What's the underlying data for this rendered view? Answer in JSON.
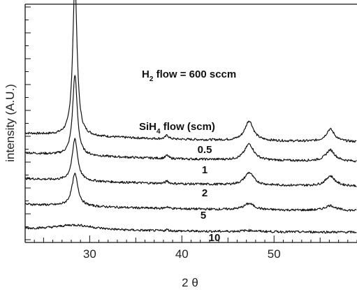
{
  "chart_data": {
    "type": "line",
    "xlabel": "2 θ",
    "ylabel": "intensity (A.U.)",
    "xlim": [
      23,
      59
    ],
    "x_ticks": [
      30,
      40,
      50
    ],
    "y_ticks_labeled": false,
    "grid": false,
    "annotation_main": {
      "pre": "H",
      "sub": "2",
      "post": " flow = 600 sccm"
    },
    "annotation_series": {
      "pre": "SiH",
      "sub": "4",
      "post": " flow (scm)"
    },
    "peaks_2theta": [
      28.4,
      47.3,
      56.1
    ],
    "series": [
      {
        "name": "0.5",
        "baseline": 0.08,
        "peaks": [
          {
            "x": 28.4,
            "h": 1.25,
            "w": 0.28
          },
          {
            "x": 47.3,
            "h": 0.16,
            "w": 0.55
          },
          {
            "x": 56.1,
            "h": 0.1,
            "w": 0.55
          },
          {
            "x": 38.4,
            "h": 0.03,
            "w": 0.2
          }
        ]
      },
      {
        "name": "1",
        "baseline": 0.08,
        "peaks": [
          {
            "x": 28.4,
            "h": 0.65,
            "w": 0.3
          },
          {
            "x": 47.3,
            "h": 0.13,
            "w": 0.6
          },
          {
            "x": 56.1,
            "h": 0.09,
            "w": 0.6
          },
          {
            "x": 38.4,
            "h": 0.025,
            "w": 0.2
          }
        ]
      },
      {
        "name": "2",
        "baseline": 0.07,
        "peaks": [
          {
            "x": 28.4,
            "h": 0.34,
            "w": 0.35
          },
          {
            "x": 47.3,
            "h": 0.1,
            "w": 0.6
          },
          {
            "x": 56.1,
            "h": 0.08,
            "w": 0.6
          },
          {
            "x": 38.4,
            "h": 0.02,
            "w": 0.2
          }
        ]
      },
      {
        "name": "5",
        "baseline": 0.06,
        "peaks": [
          {
            "x": 28.4,
            "h": 0.26,
            "w": 0.4
          },
          {
            "x": 47.3,
            "h": 0.05,
            "w": 0.7
          },
          {
            "x": 56.1,
            "h": 0.04,
            "w": 0.7
          },
          {
            "x": 38.4,
            "h": 0.015,
            "w": 0.2
          }
        ]
      },
      {
        "name": "10",
        "baseline": 0.03,
        "peaks": [
          {
            "x": 28.4,
            "h": 0.04,
            "w": 2.5
          },
          {
            "x": 47.3,
            "h": 0.01,
            "w": 1.0
          },
          {
            "x": 38.4,
            "h": 0.01,
            "w": 0.2
          }
        ]
      }
    ]
  }
}
